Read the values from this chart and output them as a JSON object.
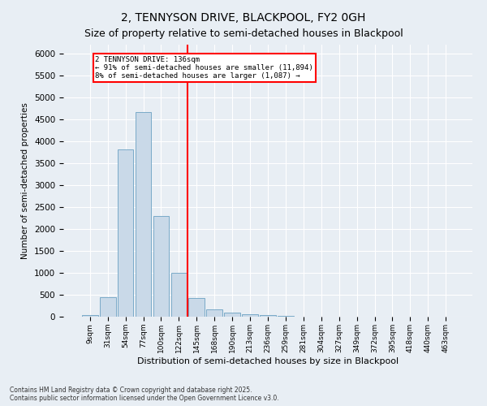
{
  "title": "2, TENNYSON DRIVE, BLACKPOOL, FY2 0GH",
  "subtitle": "Size of property relative to semi-detached houses in Blackpool",
  "xlabel": "Distribution of semi-detached houses by size in Blackpool",
  "ylabel": "Number of semi-detached properties",
  "bar_labels": [
    "9sqm",
    "31sqm",
    "54sqm",
    "77sqm",
    "100sqm",
    "122sqm",
    "145sqm",
    "168sqm",
    "190sqm",
    "213sqm",
    "236sqm",
    "259sqm",
    "281sqm",
    "304sqm",
    "327sqm",
    "349sqm",
    "372sqm",
    "395sqm",
    "418sqm",
    "440sqm",
    "463sqm"
  ],
  "bar_values": [
    30,
    450,
    3820,
    4670,
    2300,
    1000,
    420,
    175,
    90,
    60,
    30,
    10,
    5,
    2,
    1,
    0,
    0,
    0,
    0,
    0,
    0
  ],
  "bar_color": "#c9d9e8",
  "bar_edge_color": "#7aaac8",
  "vline_x": 6.0,
  "vline_color": "red",
  "annotation_title": "2 TENNYSON DRIVE: 136sqm",
  "annotation_line1": "← 91% of semi-detached houses are smaller (11,894)",
  "annotation_line2": "8% of semi-detached houses are larger (1,087) →",
  "ylim": [
    0,
    6200
  ],
  "yticks": [
    0,
    500,
    1000,
    1500,
    2000,
    2500,
    3000,
    3500,
    4000,
    4500,
    5000,
    5500,
    6000
  ],
  "footer_line1": "Contains HM Land Registry data © Crown copyright and database right 2025.",
  "footer_line2": "Contains public sector information licensed under the Open Government Licence v3.0.",
  "background_color": "#e8eef4",
  "grid_color": "#ffffff",
  "title_fontsize": 10,
  "subtitle_fontsize": 9
}
